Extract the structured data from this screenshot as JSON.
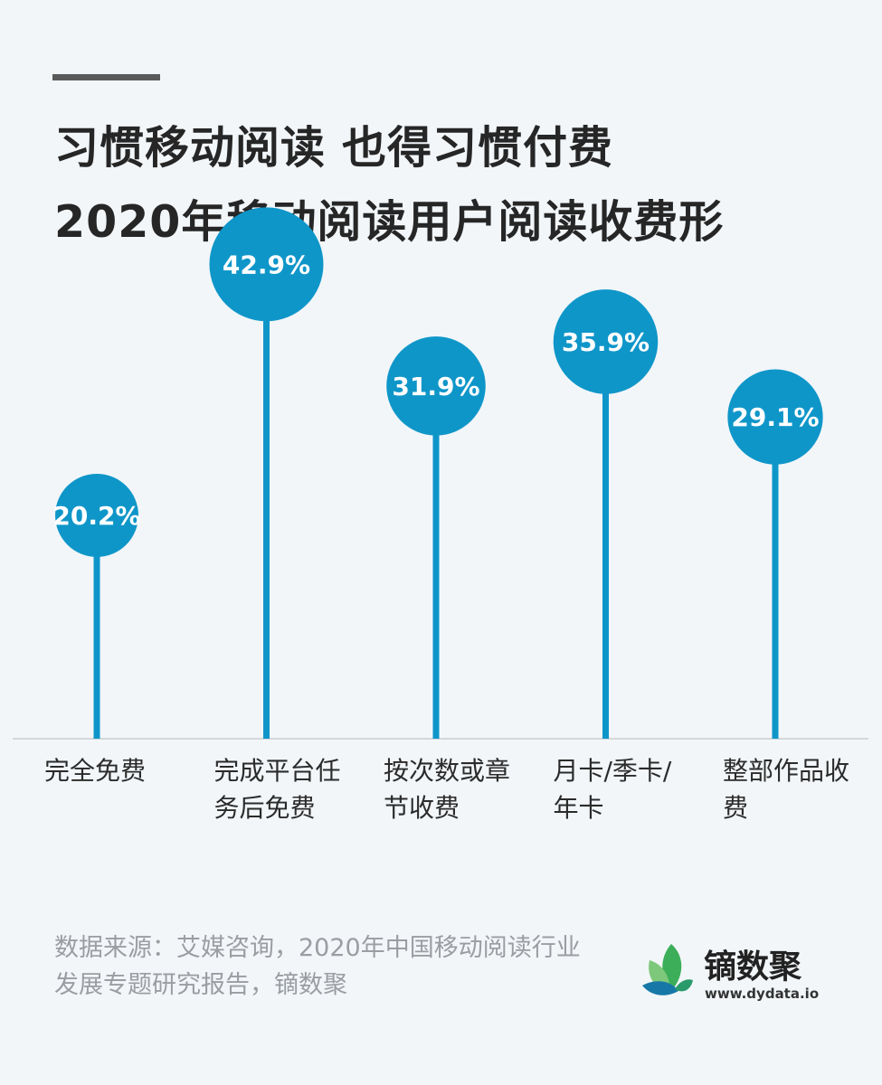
{
  "title": {
    "line1": "习惯移动阅读 也得习惯付费",
    "line2": "2020年移动阅读用户阅读收费形"
  },
  "chart_data": {
    "type": "lollipop",
    "title": "2020年移动阅读用户阅读收费形",
    "categories": [
      "完全免费",
      "完成平台任务后免费",
      "按次数或章节收费",
      "月卡/季卡/年卡",
      "整部作品收费"
    ],
    "values": [
      20.2,
      42.9,
      31.9,
      35.9,
      29.1
    ],
    "value_labels": [
      "20.2%",
      "42.9%",
      "31.9%",
      "35.9%",
      "29.1%"
    ],
    "unit": "%",
    "color": "#0f96c9"
  },
  "source": "数据来源：艾媒咨询，2020年中国移动阅读行业发展专题研究报告，镝数聚",
  "brand": {
    "name": "镝数聚",
    "url": "www.dydata.io",
    "logo_icon": "leaf-logo-icon"
  }
}
